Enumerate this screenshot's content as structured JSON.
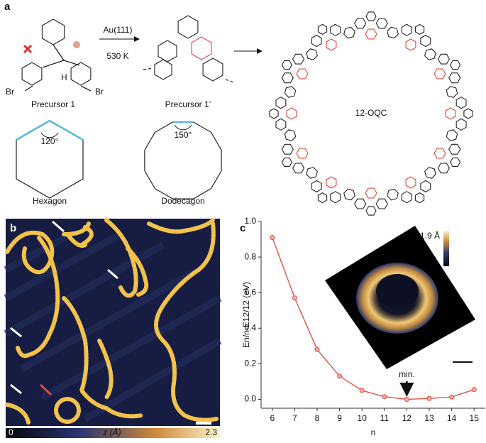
{
  "panel_labels": {
    "a": "a",
    "b": "b",
    "c": "c"
  },
  "scheme": {
    "reaction": {
      "catalyst": "Au(111)",
      "temperature": "530 K"
    },
    "precursor": {
      "label": "Precursor 1",
      "atoms": [
        "Br",
        "Br",
        "H"
      ]
    },
    "product_label": "Precursor 1’",
    "macrocycle": "12-OQC",
    "polygons": [
      {
        "name": "Hexagon",
        "angle": "120°"
      },
      {
        "name": "Dodecagon",
        "angle": "150°"
      }
    ]
  },
  "stm_image": {
    "colorbar": {
      "min": "0",
      "label": "z (Å)",
      "max": "2.3"
    }
  },
  "chart_data": {
    "type": "line",
    "x": [
      6,
      7,
      8,
      9,
      10,
      11,
      12,
      13,
      14,
      15
    ],
    "series": [
      {
        "color": "#e5473b",
        "values": [
          0.91,
          0.57,
          0.28,
          0.13,
          0.05,
          0.015,
          0.0,
          0.005,
          0.013,
          0.055
        ]
      }
    ],
    "xlim": [
      5.5,
      15.5
    ],
    "ylim": [
      -0.05,
      1.0
    ],
    "xticks": [
      6,
      7,
      8,
      9,
      10,
      11,
      12,
      13,
      14,
      15
    ],
    "yticks": [
      {
        "value": 0,
        "label": "0.0"
      },
      {
        "value": 0.2,
        "label": "0.2"
      },
      {
        "value": 0.4,
        "label": "0.4"
      },
      {
        "value": 0.6,
        "label": "0.6"
      },
      {
        "value": 0.8,
        "label": "0.8"
      },
      {
        "value": 1.0,
        "label": "1.0"
      }
    ],
    "xlabel": "n",
    "ylabel": "En/n-E12/12 (eV)",
    "annotation": {
      "text": "min.",
      "x": 12
    },
    "inset": {
      "colorbar_label": "1.9 Å"
    }
  }
}
